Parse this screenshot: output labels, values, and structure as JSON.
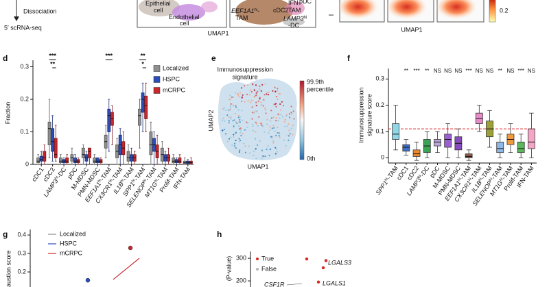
{
  "top": {
    "step": "Dissociation",
    "method": "5′ scRNA-seq",
    "umap_labels": [
      {
        "name": "Epithelial"
      },
      {
        "name": "cell"
      },
      {
        "name": "Endothelial"
      },
      {
        "name": "cell"
      },
      {
        "name": "EEF1A1",
        "sup": "hi",
        "tail": "-"
      },
      {
        "name": "TAM"
      },
      {
        "name": "cDC2"
      },
      {
        "name": "IFN-"
      },
      {
        "name": "TAM"
      },
      {
        "name": "LAMP3",
        "sup": "hi"
      },
      {
        "name": "-DC"
      },
      {
        "name": "pDC"
      }
    ],
    "umap_axis": "UMAP1",
    "density_axis": "UMAP1",
    "colorbar_tick": "0.2"
  },
  "panel_d": {
    "letter": "d",
    "type": "box",
    "ylabel": "Fraction",
    "ylim": [
      0,
      0.32
    ],
    "yticks": [
      0,
      0.1,
      0.2,
      0.3
    ],
    "categories": [
      {
        "name": "cDC1"
      },
      {
        "name": "cDC2"
      },
      {
        "name": "LAMP3",
        "sup": "hi",
        "tail": "-DC"
      },
      {
        "name": "pDC"
      },
      {
        "name": "M-MDSC"
      },
      {
        "name": "PMN-MDSC"
      },
      {
        "name": "EEF1A1",
        "sup": "hi",
        "tail": "-TAM"
      },
      {
        "name": "CX3CR1",
        "sup": "hi",
        "tail": "-TAM"
      },
      {
        "name": "IL1B",
        "sup": "hi",
        "tail": "-TAM"
      },
      {
        "name": "SPP1",
        "sup": "hi",
        "tail": "-TAM"
      },
      {
        "name": "SELENOP",
        "sup": "hi",
        "tail": "-TAM"
      },
      {
        "name": "MT1G",
        "sup": "hi",
        "tail": "-TAM"
      },
      {
        "name": "Prolif-TAM"
      },
      {
        "name": "IFN-TAM"
      }
    ],
    "significance": [
      null,
      [
        "***",
        "**"
      ],
      null,
      null,
      null,
      null,
      [
        "***"
      ],
      null,
      null,
      [
        "**",
        "*"
      ],
      null,
      null,
      null,
      null
    ],
    "series": [
      {
        "name": "Localized",
        "color": "#8f8f8f",
        "values": [
          [
            0,
            0.005,
            0.01,
            0.02,
            0.03
          ],
          [
            0.02,
            0.06,
            0.11,
            0.13,
            0.2
          ],
          [
            0,
            0.005,
            0.01,
            0.02,
            0.03
          ],
          [
            0,
            0.01,
            0.02,
            0.03,
            0.05
          ],
          [
            0,
            0.02,
            0.03,
            0.05,
            0.06
          ],
          [
            0,
            0.005,
            0.01,
            0.02,
            0.03
          ],
          [
            0.02,
            0.05,
            0.07,
            0.09,
            0.12
          ],
          [
            0,
            0.02,
            0.04,
            0.06,
            0.08
          ],
          [
            0,
            0.01,
            0.02,
            0.04,
            0.06
          ],
          [
            0.05,
            0.12,
            0.15,
            0.17,
            0.2
          ],
          [
            0,
            0.03,
            0.06,
            0.1,
            0.13
          ],
          [
            0,
            0.01,
            0.03,
            0.05,
            0.07
          ],
          [
            0,
            0.005,
            0.01,
            0.02,
            0.03
          ],
          [
            0,
            0.003,
            0.005,
            0.01,
            0.02
          ]
        ]
      },
      {
        "name": "HSPC",
        "color": "#2b4fb8",
        "values": [
          [
            0,
            0.01,
            0.015,
            0.025,
            0.04
          ],
          [
            0.01,
            0.04,
            0.07,
            0.11,
            0.15
          ],
          [
            0,
            0.005,
            0.01,
            0.015,
            0.02
          ],
          [
            0,
            0.005,
            0.01,
            0.02,
            0.03
          ],
          [
            0,
            0.01,
            0.02,
            0.03,
            0.04
          ],
          [
            0,
            0.005,
            0.01,
            0.02,
            0.02
          ],
          [
            0.04,
            0.1,
            0.15,
            0.17,
            0.2
          ],
          [
            0,
            0.03,
            0.06,
            0.09,
            0.11
          ],
          [
            0,
            0.01,
            0.02,
            0.03,
            0.05
          ],
          [
            0.1,
            0.16,
            0.2,
            0.22,
            0.25
          ],
          [
            0,
            0.04,
            0.06,
            0.08,
            0.1
          ],
          [
            0,
            0.01,
            0.02,
            0.03,
            0.04
          ],
          [
            0,
            0.005,
            0.01,
            0.015,
            0.02
          ],
          [
            0,
            0.003,
            0.005,
            0.01,
            0.015
          ]
        ]
      },
      {
        "name": "mCRPC",
        "color": "#c8282d",
        "values": [
          [
            0,
            0.01,
            0.02,
            0.04,
            0.06
          ],
          [
            0.01,
            0.02,
            0.03,
            0.08,
            0.12
          ],
          [
            0,
            0.005,
            0.01,
            0.02,
            0.03
          ],
          [
            0,
            0.005,
            0.01,
            0.015,
            0.02
          ],
          [
            0,
            0.02,
            0.04,
            0.05,
            0.05
          ],
          [
            0,
            0.005,
            0.01,
            0.015,
            0.02
          ],
          [
            0.06,
            0.12,
            0.14,
            0.16,
            0.18
          ],
          [
            0,
            0.03,
            0.05,
            0.07,
            0.1
          ],
          [
            0,
            0.01,
            0.02,
            0.03,
            0.04
          ],
          [
            0.1,
            0.14,
            0.18,
            0.21,
            0.25
          ],
          [
            0,
            0.02,
            0.04,
            0.06,
            0.09
          ],
          [
            0,
            0.01,
            0.02,
            0.03,
            0.05
          ],
          [
            0,
            0.005,
            0.01,
            0.02,
            0.03
          ],
          [
            0,
            0.003,
            0.005,
            0.01,
            0.02
          ]
        ]
      }
    ]
  },
  "panel_e": {
    "letter": "e",
    "title": [
      "Immunosuppression",
      "signature"
    ],
    "colorbar_top": [
      "99.9th",
      "percentile"
    ],
    "colorbar_bottom": "0th",
    "xlabel": "UMAP1",
    "ylabel": "UMAP2"
  },
  "panel_f": {
    "letter": "f",
    "type": "box",
    "ylabel": [
      "Immunosuppression",
      "signature score"
    ],
    "ylim": [
      -0.02,
      0.34
    ],
    "yticks": [
      0,
      0.1,
      0.2,
      0.3
    ],
    "threshold": 0.11,
    "threshold_color": "#e0262b",
    "categories": [
      {
        "name": "SPP1",
        "sup": "hi",
        "tail": "-TAM"
      },
      {
        "name": "cDC1"
      },
      {
        "name": "cDC2"
      },
      {
        "name": "LAMP3",
        "sup": "hi",
        "tail": "-DC"
      },
      {
        "name": "pDC"
      },
      {
        "name": "M-MDSC"
      },
      {
        "name": "PMN-MDSC"
      },
      {
        "name": "EEF1A1",
        "sup": "hi",
        "tail": "-TAM"
      },
      {
        "name": "CX3CR1",
        "sup": "hi",
        "tail": "-TAM"
      },
      {
        "name": "IL1B",
        "sup": "hi",
        "tail": "-TAM"
      },
      {
        "name": "SELENOP",
        "sup": "hi",
        "tail": "-TAM"
      },
      {
        "name": "MT1G",
        "sup": "hi",
        "tail": "-TAM"
      },
      {
        "name": "Prolif-TAM"
      },
      {
        "name": "IFN-TAM"
      }
    ],
    "significance": [
      null,
      "**",
      "***",
      "**",
      "NS",
      "NS",
      "NS",
      "***",
      "NS",
      "NS",
      "**",
      "NS",
      "***",
      "NS"
    ],
    "colors": [
      "#8fd6e6",
      "#3f6fc6",
      "#f08a2c",
      "#3aa356",
      "#b9a9d9",
      "#9a5fd0",
      "#8a4dbf",
      "#8c5a47",
      "#e58bc8",
      "#9c9f3a",
      "#8fb8e6",
      "#f59a3b",
      "#5cb85c",
      "#f4a6c6"
    ],
    "values": [
      [
        0.03,
        0.07,
        0.09,
        0.13,
        0.2
      ],
      [
        0.01,
        0.025,
        0.04,
        0.05,
        0.07
      ],
      [
        -0.01,
        0.005,
        0.015,
        0.03,
        0.06
      ],
      [
        0,
        0.02,
        0.045,
        0.07,
        0.1
      ],
      [
        0.02,
        0.045,
        0.06,
        0.07,
        0.1
      ],
      [
        0,
        0.04,
        0.07,
        0.09,
        0.13
      ],
      [
        0,
        0.03,
        0.055,
        0.08,
        0.11
      ],
      [
        -0.01,
        0,
        0.005,
        0.015,
        0.03
      ],
      [
        0.1,
        0.13,
        0.15,
        0.17,
        0.2
      ],
      [
        0.04,
        0.08,
        0.11,
        0.14,
        0.18
      ],
      [
        0,
        0.02,
        0.035,
        0.06,
        0.09
      ],
      [
        0.02,
        0.05,
        0.07,
        0.09,
        0.13
      ],
      [
        0,
        0.02,
        0.035,
        0.06,
        0.09
      ],
      [
        0,
        0.035,
        0.06,
        0.11,
        0.17
      ]
    ]
  },
  "panel_g": {
    "letter": "g",
    "ylabel": "austion score",
    "ylim": [
      0.1,
      0.43
    ],
    "yticks": [
      0.2,
      0.3,
      0.4
    ],
    "series": [
      {
        "name": "Localized",
        "color": "#8f8f8f"
      },
      {
        "name": "HSPC",
        "color": "#2b4fb8",
        "points": [
          0.155
        ]
      },
      {
        "name": "mCRPC",
        "color": "#c8282d",
        "points": [
          0.33
        ],
        "trend": [
          0.159,
          0.274
        ]
      }
    ]
  },
  "panel_h": {
    "letter": "h",
    "ylabel": "(P-value)",
    "ylim": [
      170,
      330
    ],
    "yticks": [
      200,
      300
    ],
    "series": [
      {
        "name": "True",
        "color": "#d7261e",
        "points": [
          297,
          290,
          258,
          195
        ]
      },
      {
        "name": "False",
        "color": "#b5b5b5"
      }
    ],
    "genes": [
      "LGALS3",
      "LGALS1",
      "CSF1R"
    ]
  }
}
